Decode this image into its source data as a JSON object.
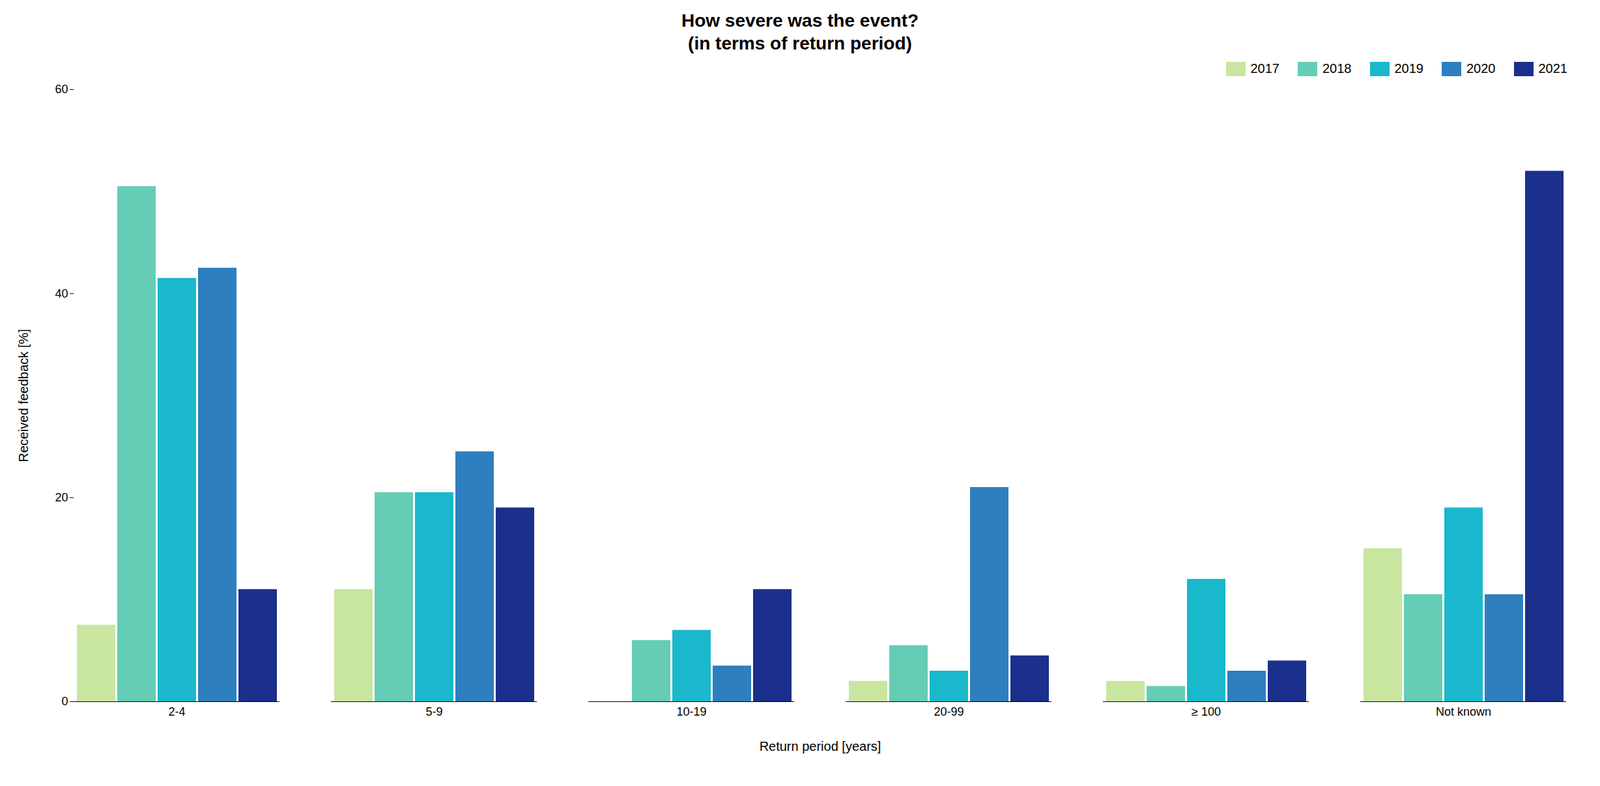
{
  "chart_data": {
    "type": "bar",
    "title": "How severe was the event?\n(in terms of return period)",
    "xlabel": "Return period [years]",
    "ylabel": "Received feedback [%]",
    "categories": [
      "2-4",
      "5-9",
      "10-19",
      "20-99",
      "≥ 100",
      "Not known"
    ],
    "series": [
      {
        "name": "2017",
        "color": "#c8e6a0",
        "values": [
          7.5,
          11.0,
          0.0,
          2.0,
          2.0,
          15.0
        ]
      },
      {
        "name": "2018",
        "color": "#65cdb5",
        "values": [
          50.5,
          20.5,
          6.0,
          5.5,
          1.5,
          10.5
        ]
      },
      {
        "name": "2019",
        "color": "#1ab8cc",
        "values": [
          41.5,
          20.5,
          7.0,
          3.0,
          12.0,
          19.0
        ]
      },
      {
        "name": "2020",
        "color": "#2e7fbf",
        "values": [
          42.5,
          24.5,
          3.5,
          21.0,
          3.0,
          10.5
        ]
      },
      {
        "name": "2021",
        "color": "#1b2f8c",
        "values": [
          11.0,
          19.0,
          11.0,
          4.5,
          4.0,
          52.0
        ]
      }
    ],
    "ylim": [
      0,
      60
    ],
    "yticks": [
      0,
      20,
      40,
      60
    ],
    "grid": false,
    "legend": "upper right"
  }
}
